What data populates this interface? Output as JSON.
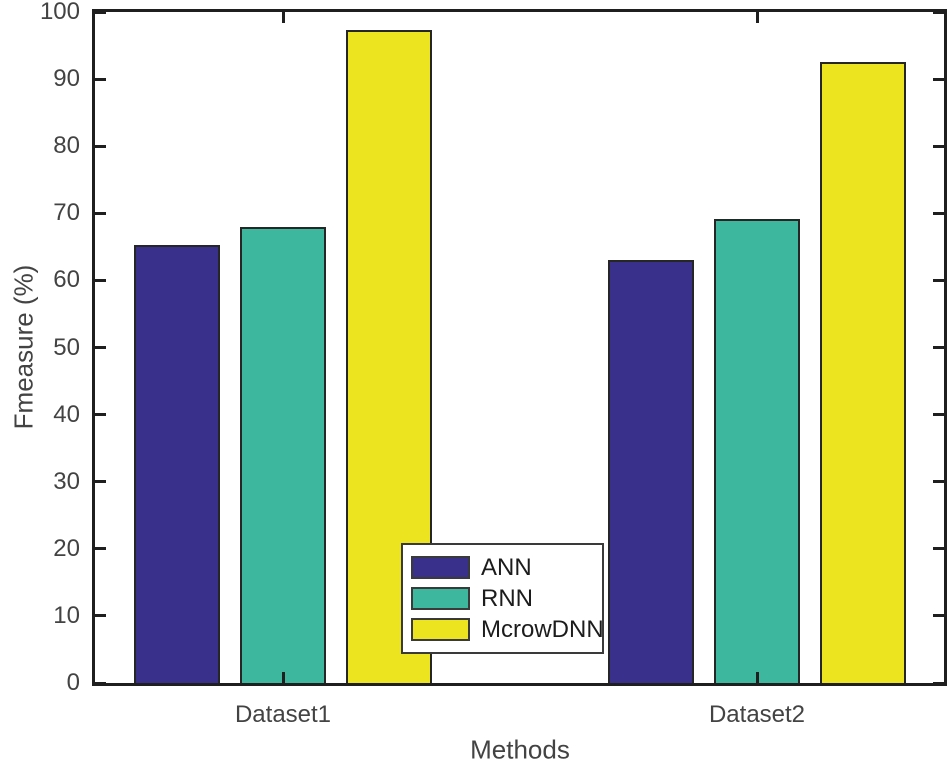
{
  "chart_data": {
    "type": "bar",
    "title": "",
    "xlabel": "Methods",
    "ylabel": "Fmeasure (%)",
    "categories": [
      "Dataset1",
      "Dataset2"
    ],
    "series": [
      {
        "name": "ANN",
        "color": "#39308C",
        "values": [
          65.3,
          63.1
        ]
      },
      {
        "name": "RNN",
        "color": "#3EB79F",
        "values": [
          68.0,
          69.2
        ]
      },
      {
        "name": "McrowDNN",
        "color": "#EBE41F",
        "values": [
          97.3,
          92.5
        ]
      }
    ],
    "ylim": [
      0,
      100
    ],
    "ytick_values": [
      0,
      10,
      20,
      30,
      40,
      50,
      60,
      70,
      80,
      90,
      100
    ],
    "grid": false,
    "legend_position": "inside-bottom-center",
    "bar_edge_color": "#262626",
    "axis_color": "#1f1f1f",
    "tick_label_color": "#434343",
    "background": "#ffffff"
  }
}
